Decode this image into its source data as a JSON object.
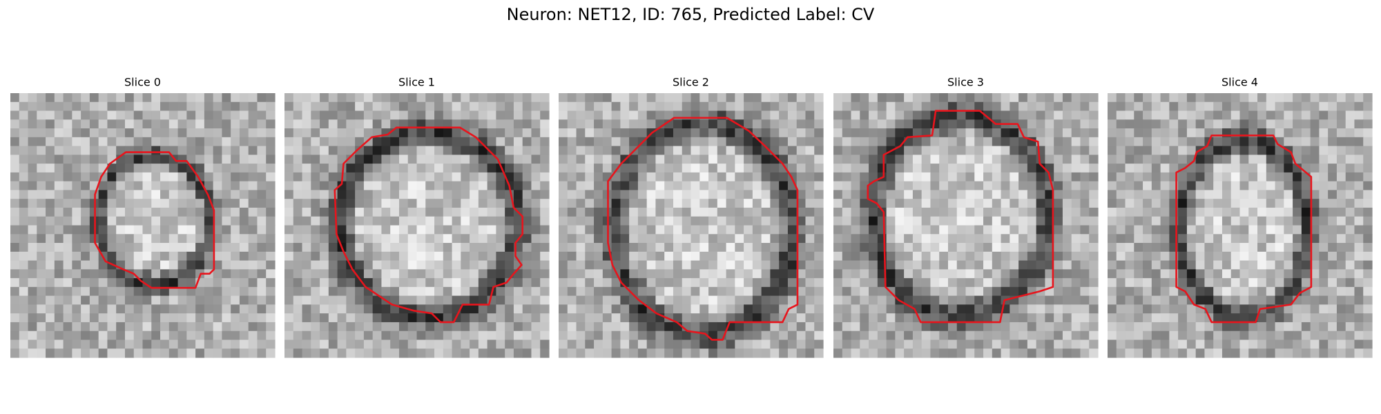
{
  "title": "Neuron: NET12, ID: 765, Predicted Label: CV",
  "panels": [
    {
      "title": "Slice 0"
    },
    {
      "title": "Slice 1"
    },
    {
      "title": "Slice 2"
    },
    {
      "title": "Slice 3"
    },
    {
      "title": "Slice 4"
    }
  ]
}
